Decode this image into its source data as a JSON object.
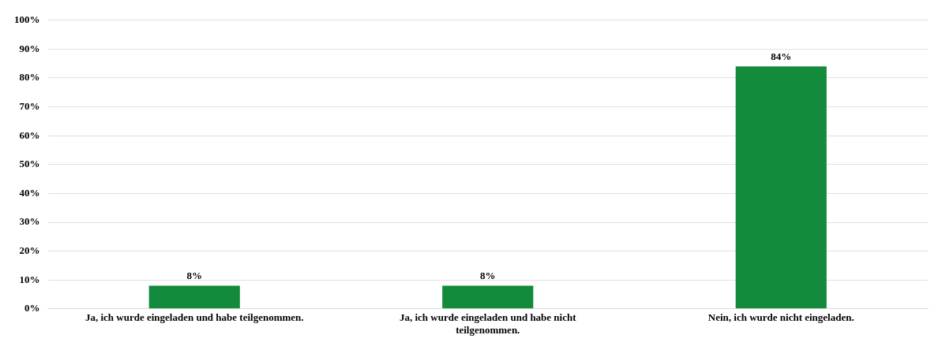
{
  "chart_data": {
    "type": "bar",
    "categories": [
      "Ja, ich wurde eingeladen und habe teilgenommen.",
      "Ja, ich wurde eingeladen und habe nicht teilgenommen.",
      "Nein, ich wurde nicht eingeladen."
    ],
    "values": [
      8,
      8,
      84
    ],
    "value_labels": [
      "8%",
      "8%",
      "84%"
    ],
    "color": "#138a3c",
    "ylim": [
      0,
      100
    ],
    "yticks": [
      {
        "value": 0,
        "label": "0%"
      },
      {
        "value": 10,
        "label": "10%"
      },
      {
        "value": 20,
        "label": "20%"
      },
      {
        "value": 30,
        "label": "30%"
      },
      {
        "value": 40,
        "label": "40%"
      },
      {
        "value": 50,
        "label": "50%"
      },
      {
        "value": 60,
        "label": "60%"
      },
      {
        "value": 70,
        "label": "70%"
      },
      {
        "value": 80,
        "label": "80%"
      },
      {
        "value": 90,
        "label": "90%"
      },
      {
        "value": 100,
        "label": "100%"
      }
    ],
    "grid": "y",
    "legend": false
  }
}
